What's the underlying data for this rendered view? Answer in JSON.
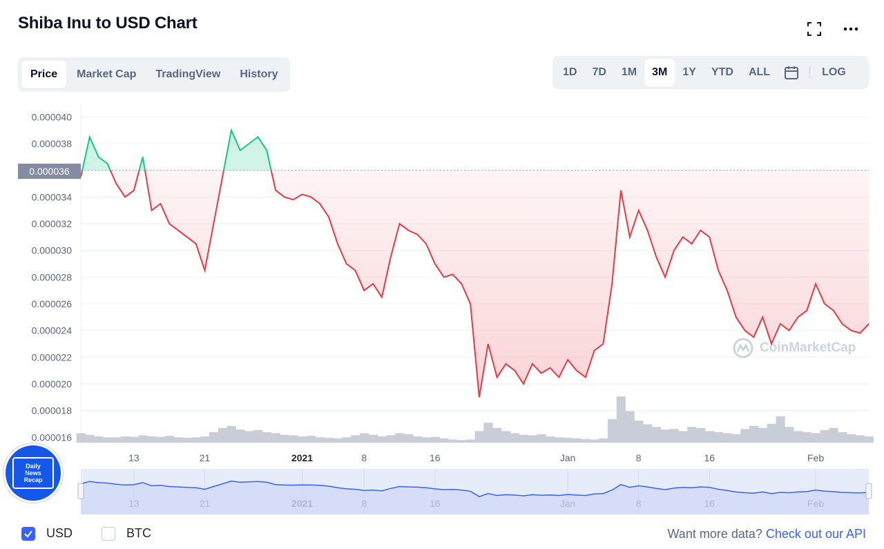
{
  "title": "Shiba Inu to USD Chart",
  "tabs": [
    {
      "label": "Price",
      "active": true
    },
    {
      "label": "Market Cap",
      "active": false
    },
    {
      "label": "TradingView",
      "active": false
    },
    {
      "label": "History",
      "active": false
    }
  ],
  "ranges": [
    {
      "label": "1D",
      "active": false
    },
    {
      "label": "7D",
      "active": false
    },
    {
      "label": "1M",
      "active": false
    },
    {
      "label": "3M",
      "active": true
    },
    {
      "label": "1Y",
      "active": false
    },
    {
      "label": "YTD",
      "active": false
    },
    {
      "label": "ALL",
      "active": false
    }
  ],
  "log_label": "LOG",
  "icons": {
    "fullscreen": "fullscreen-icon",
    "more": "more-icon",
    "calendar": "calendar-icon",
    "check": "check-icon"
  },
  "current_price_label": "0.000036",
  "watermark_text": "CoinMarketCap",
  "badge_lines": [
    "Daily",
    "News",
    "Recap"
  ],
  "legend": [
    {
      "label": "USD",
      "checked": true
    },
    {
      "label": "BTC",
      "checked": false
    }
  ],
  "footer": {
    "prefix": "Want more data?",
    "link": "Check out our API"
  },
  "colors": {
    "up": "#16c784",
    "down": "#ea3943",
    "volume": "#c8cdd8",
    "navigator": "#3861fb",
    "accent": "#3861fb"
  },
  "chart_data": {
    "type": "line",
    "title": "Shiba Inu to USD Chart",
    "xlabel": "",
    "ylabel": "",
    "yticks": [
      "0.000040",
      "0.000038",
      "0.000036",
      "0.000034",
      "0.000032",
      "0.000030",
      "0.000028",
      "0.000026",
      "0.000024",
      "0.000022",
      "0.000020",
      "0.000018",
      "0.000016"
    ],
    "ylim": [
      1.56e-05,
      4.1e-05
    ],
    "baseline": 3.6e-05,
    "xticks": [
      {
        "label": "13",
        "day": 6
      },
      {
        "label": "21",
        "day": 14
      },
      {
        "label": "2021",
        "day": 25,
        "bold": true
      },
      {
        "label": "8",
        "day": 32
      },
      {
        "label": "16",
        "day": 40
      },
      {
        "label": "Jan",
        "day": 55
      },
      {
        "label": "8",
        "day": 63
      },
      {
        "label": "16",
        "day": 71
      },
      {
        "label": "Feb",
        "day": 83
      }
    ],
    "xlim": [
      0,
      89
    ],
    "grid": true,
    "series": [
      {
        "x": [
          0,
          1,
          2,
          3,
          4,
          5,
          6,
          7,
          8,
          9,
          10,
          11,
          12,
          13,
          14,
          15,
          16,
          17,
          18,
          19,
          20,
          21,
          22,
          23,
          24,
          25,
          26,
          27,
          28,
          29,
          30,
          31,
          32,
          33,
          34,
          35,
          36,
          37,
          38,
          39,
          40,
          41,
          42,
          43,
          44,
          45,
          46,
          47,
          48,
          49,
          50,
          51,
          52,
          53,
          54,
          55,
          56,
          57,
          58,
          59,
          60,
          61,
          62,
          63,
          64,
          65,
          66,
          67,
          68,
          69,
          70,
          71,
          72,
          73,
          74,
          75,
          76,
          77,
          78,
          79,
          80,
          81,
          82,
          83,
          84,
          85,
          86,
          87,
          88,
          89
        ],
        "values": [
          3.55e-05,
          3.85e-05,
          3.7e-05,
          3.65e-05,
          3.5e-05,
          3.4e-05,
          3.45e-05,
          3.7e-05,
          3.3e-05,
          3.35e-05,
          3.2e-05,
          3.15e-05,
          3.1e-05,
          3.05e-05,
          2.85e-05,
          3.2e-05,
          3.55e-05,
          3.9e-05,
          3.75e-05,
          3.8e-05,
          3.85e-05,
          3.75e-05,
          3.45e-05,
          3.4e-05,
          3.38e-05,
          3.42e-05,
          3.4e-05,
          3.35e-05,
          3.25e-05,
          3.05e-05,
          2.9e-05,
          2.85e-05,
          2.7e-05,
          2.75e-05,
          2.65e-05,
          2.95e-05,
          3.2e-05,
          3.15e-05,
          3.12e-05,
          3.05e-05,
          2.9e-05,
          2.8e-05,
          2.82e-05,
          2.75e-05,
          2.6e-05,
          1.9e-05,
          2.3e-05,
          2.05e-05,
          2.15e-05,
          2.1e-05,
          2e-05,
          2.15e-05,
          2.08e-05,
          2.12e-05,
          2.05e-05,
          2.18e-05,
          2.1e-05,
          2.05e-05,
          2.25e-05,
          2.3e-05,
          2.75e-05,
          3.45e-05,
          3.1e-05,
          3.3e-05,
          3.15e-05,
          2.95e-05,
          2.8e-05,
          3e-05,
          3.1e-05,
          3.05e-05,
          3.15e-05,
          3.1e-05,
          2.85e-05,
          2.7e-05,
          2.5e-05,
          2.4e-05,
          2.35e-05,
          2.5e-05,
          2.3e-05,
          2.45e-05,
          2.4e-05,
          2.5e-05,
          2.55e-05,
          2.75e-05,
          2.6e-05,
          2.55e-05,
          2.45e-05,
          2.4e-05,
          2.38e-05,
          2.45e-05
        ],
        "volume": [
          0.18,
          0.15,
          0.12,
          0.1,
          0.1,
          0.12,
          0.11,
          0.14,
          0.12,
          0.11,
          0.13,
          0.1,
          0.09,
          0.1,
          0.12,
          0.2,
          0.28,
          0.32,
          0.25,
          0.22,
          0.24,
          0.2,
          0.18,
          0.15,
          0.14,
          0.12,
          0.13,
          0.1,
          0.09,
          0.08,
          0.1,
          0.14,
          0.18,
          0.15,
          0.12,
          0.14,
          0.18,
          0.16,
          0.12,
          0.1,
          0.11,
          0.08,
          0.06,
          0.05,
          0.06,
          0.22,
          0.38,
          0.28,
          0.22,
          0.18,
          0.15,
          0.14,
          0.16,
          0.12,
          0.1,
          0.09,
          0.08,
          0.07,
          0.06,
          0.08,
          0.45,
          0.88,
          0.6,
          0.42,
          0.35,
          0.3,
          0.25,
          0.26,
          0.22,
          0.3,
          0.28,
          0.22,
          0.2,
          0.18,
          0.16,
          0.26,
          0.32,
          0.28,
          0.36,
          0.5,
          0.3,
          0.22,
          0.2,
          0.18,
          0.24,
          0.28,
          0.2,
          0.16,
          0.14,
          0.12
        ]
      }
    ]
  }
}
